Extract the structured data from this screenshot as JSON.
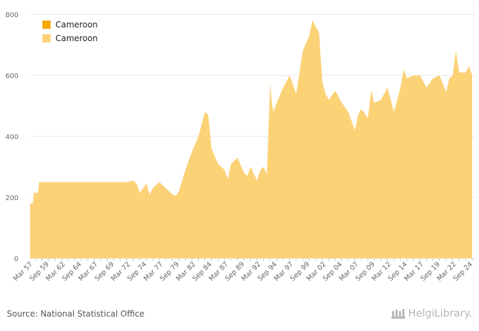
{
  "chart_data": {
    "type": "area",
    "title": "",
    "xlabel": "",
    "ylabel": "",
    "ylim": [
      0,
      800
    ],
    "yticks": [
      0,
      200,
      400,
      600,
      800
    ],
    "grid": true,
    "legend_position": "top-left",
    "legend": [
      {
        "name": "Cameroon",
        "color": "#f5a800"
      },
      {
        "name": "Cameroon",
        "color": "#fcd277"
      }
    ],
    "x_tick_labels": [
      "Mar 57",
      "Sep 59",
      "Mar 62",
      "Sep 64",
      "Mar 67",
      "Sep 69",
      "Mar 72",
      "Sep 74",
      "Mar 77",
      "Sep 79",
      "Mar 82",
      "Sep 84",
      "Mar 87",
      "Sep 89",
      "Mar 92",
      "Sep 94",
      "Mar 97",
      "Sep 99",
      "Mar 02",
      "Sep 04",
      "Mar 07",
      "Sep 09",
      "Mar 12",
      "Sep 14",
      "Mar 17",
      "Sep 19",
      "Mar 22",
      "Sep 24"
    ],
    "x_range": [
      1957.17,
      2025.0
    ],
    "series": [
      {
        "name": "Cameroon",
        "color": "#fcd277",
        "x": [
          1957.17,
          1957.6,
          1957.75,
          1958.4,
          1958.55,
          1959.0,
          1972.0,
          1973.0,
          1973.5,
          1974.0,
          1975.0,
          1975.5,
          1976.0,
          1977.0,
          1978.0,
          1979.0,
          1979.5,
          1980.0,
          1981.0,
          1982.0,
          1983.0,
          1984.0,
          1984.5,
          1985.0,
          1986.0,
          1987.0,
          1987.5,
          1988.0,
          1989.0,
          1990.0,
          1990.5,
          1991.0,
          1992.0,
          1992.5,
          1993.0,
          1993.5,
          1994.0,
          1994.2,
          1994.5,
          1995.0,
          1996.0,
          1997.0,
          1998.0,
          1999.0,
          2000.0,
          2000.5,
          2001.0,
          2001.5,
          2002.0,
          2002.5,
          2003.0,
          2004.0,
          2005.0,
          2006.0,
          2007.0,
          2007.5,
          2008.0,
          2009.0,
          2009.5,
          2010.0,
          2011.0,
          2012.0,
          2013.0,
          2014.0,
          2014.5,
          2015.0,
          2016.0,
          2017.0,
          2018.0,
          2019.0,
          2020.0,
          2021.0,
          2021.5,
          2022.0,
          2022.5,
          2023.0,
          2024.0,
          2024.5,
          2025.0
        ],
        "values": [
          180,
          180,
          215,
          215,
          250,
          250,
          250,
          255,
          245,
          215,
          245,
          210,
          230,
          250,
          230,
          210,
          205,
          220,
          290,
          350,
          400,
          480,
          470,
          360,
          310,
          290,
          260,
          310,
          330,
          280,
          270,
          300,
          255,
          290,
          300,
          275,
          575,
          520,
          480,
          510,
          560,
          600,
          540,
          680,
          730,
          780,
          760,
          740,
          580,
          540,
          520,
          550,
          510,
          480,
          420,
          470,
          490,
          460,
          550,
          510,
          520,
          560,
          480,
          560,
          620,
          590,
          600,
          600,
          560,
          590,
          600,
          545,
          590,
          600,
          680,
          610,
          610,
          630,
          600
        ]
      }
    ]
  },
  "source_text": "Source: National Statistical Office",
  "brand_text": "HelgiLibrary."
}
